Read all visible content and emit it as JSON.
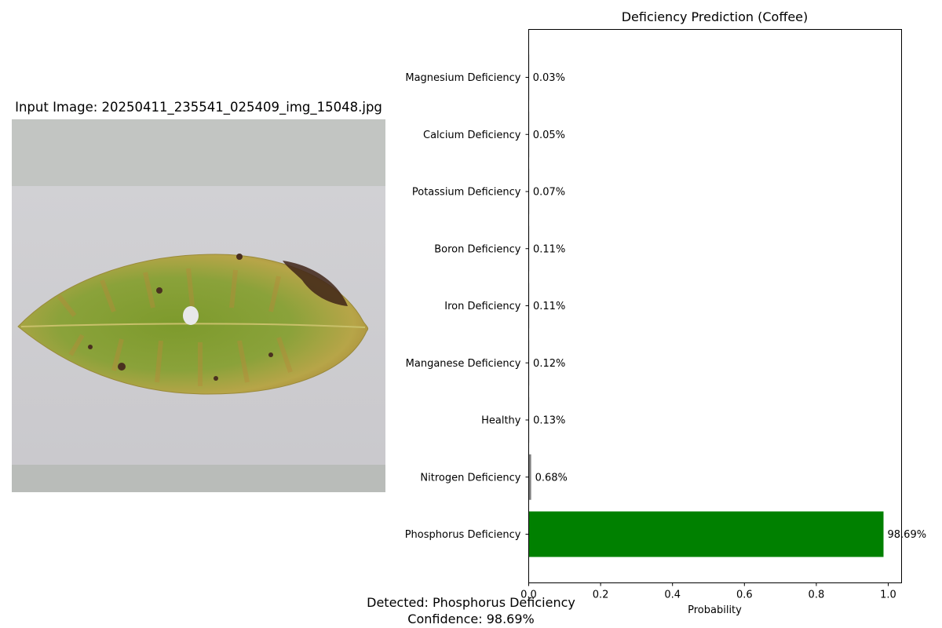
{
  "image_panel": {
    "title": "Input Image: 20250411_235541_025409_img_15048.jpg"
  },
  "summary": {
    "detected": "Detected: Phosphorus Deficiency",
    "confidence": "Confidence: 98.69%"
  },
  "colors": {
    "top_bar": "#008000",
    "other_bar": "#808080"
  },
  "chart_data": {
    "type": "bar",
    "orientation": "horizontal",
    "title": "Deficiency Prediction (Coffee)",
    "xlabel": "Probability",
    "ylabel": "",
    "xlim": [
      0,
      1.0
    ],
    "xticks": [
      0.0,
      0.2,
      0.4,
      0.6,
      0.8,
      1.0
    ],
    "xtick_labels": [
      "0.0",
      "0.2",
      "0.4",
      "0.6",
      "0.8",
      "1.0"
    ],
    "categories": [
      "Phosphorus Deficiency",
      "Nitrogen Deficiency",
      "Healthy",
      "Manganese Deficiency",
      "Iron Deficiency",
      "Boron Deficiency",
      "Potassium Deficiency",
      "Calcium Deficiency",
      "Magnesium Deficiency"
    ],
    "values": [
      0.9869,
      0.0068,
      0.0013,
      0.0012,
      0.0011,
      0.0011,
      0.0007,
      0.0005,
      0.0003
    ],
    "value_labels": [
      "98.69%",
      "0.68%",
      "0.13%",
      "0.12%",
      "0.11%",
      "0.11%",
      "0.07%",
      "0.05%",
      "0.03%"
    ],
    "grid": false
  }
}
